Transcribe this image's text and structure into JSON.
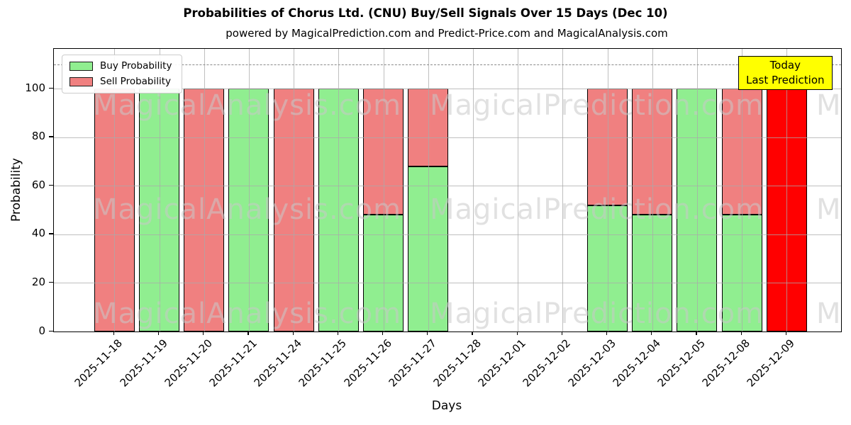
{
  "title": "Probabilities of Chorus Ltd. (CNU) Buy/Sell Signals Over 15 Days (Dec 10)",
  "subtitle": "powered by MagicalPrediction.com and Predict-Price.com and MagicalAnalysis.com",
  "legend": {
    "buy_label": "Buy Probability",
    "sell_label": "Sell Probability"
  },
  "annotation": {
    "line1": "Today",
    "line2": "Last Prediction"
  },
  "colors": {
    "buy": "#90EE90",
    "sell": "#F08080",
    "today": "#FF0000",
    "bar_edge": "#000000",
    "grid": "#aaaaaa",
    "dashed_line": "#8a8a8a",
    "annotation_bg": "#FFFF00",
    "watermark": "#c8c8c8"
  },
  "watermarks": {
    "row_texts": [
      "MagicalAnalysis.com",
      "MagicalPrediction.com",
      "MagicalAnalysis.com"
    ],
    "rows": 3
  },
  "chart_data": {
    "type": "bar",
    "stacked": true,
    "title": "Probabilities of Chorus Ltd. (CNU) Buy/Sell Signals Over 15 Days (Dec 10)",
    "xlabel": "Days",
    "ylabel": "Probability",
    "yticks": [
      0,
      20,
      40,
      60,
      80,
      100
    ],
    "ylim": [
      0,
      116.4
    ],
    "grid": true,
    "legend_position": "upper left",
    "dashed_line_y": 110,
    "categories": [
      "2025-11-18",
      "2025-11-19",
      "2025-11-20",
      "2025-11-21",
      "2025-11-24",
      "2025-11-25",
      "2025-11-26",
      "2025-11-27",
      "2025-11-28",
      "2025-12-01",
      "2025-12-02",
      "2025-12-03",
      "2025-12-04",
      "2025-12-05",
      "2025-12-08",
      "2025-12-09"
    ],
    "series": [
      {
        "name": "Buy Probability",
        "color": "#90EE90",
        "values": [
          0,
          100,
          0,
          100,
          0,
          100,
          48,
          68,
          0,
          0,
          0,
          52,
          48,
          100,
          48,
          0
        ]
      },
      {
        "name": "Sell Probability",
        "color": "#F08080",
        "values": [
          100,
          0,
          100,
          0,
          100,
          0,
          52,
          32,
          0,
          0,
          0,
          48,
          52,
          0,
          52,
          100
        ]
      }
    ],
    "today_bar": {
      "index": 15,
      "color": "#FF0000",
      "label": "Today Last Prediction",
      "value": 100
    }
  }
}
